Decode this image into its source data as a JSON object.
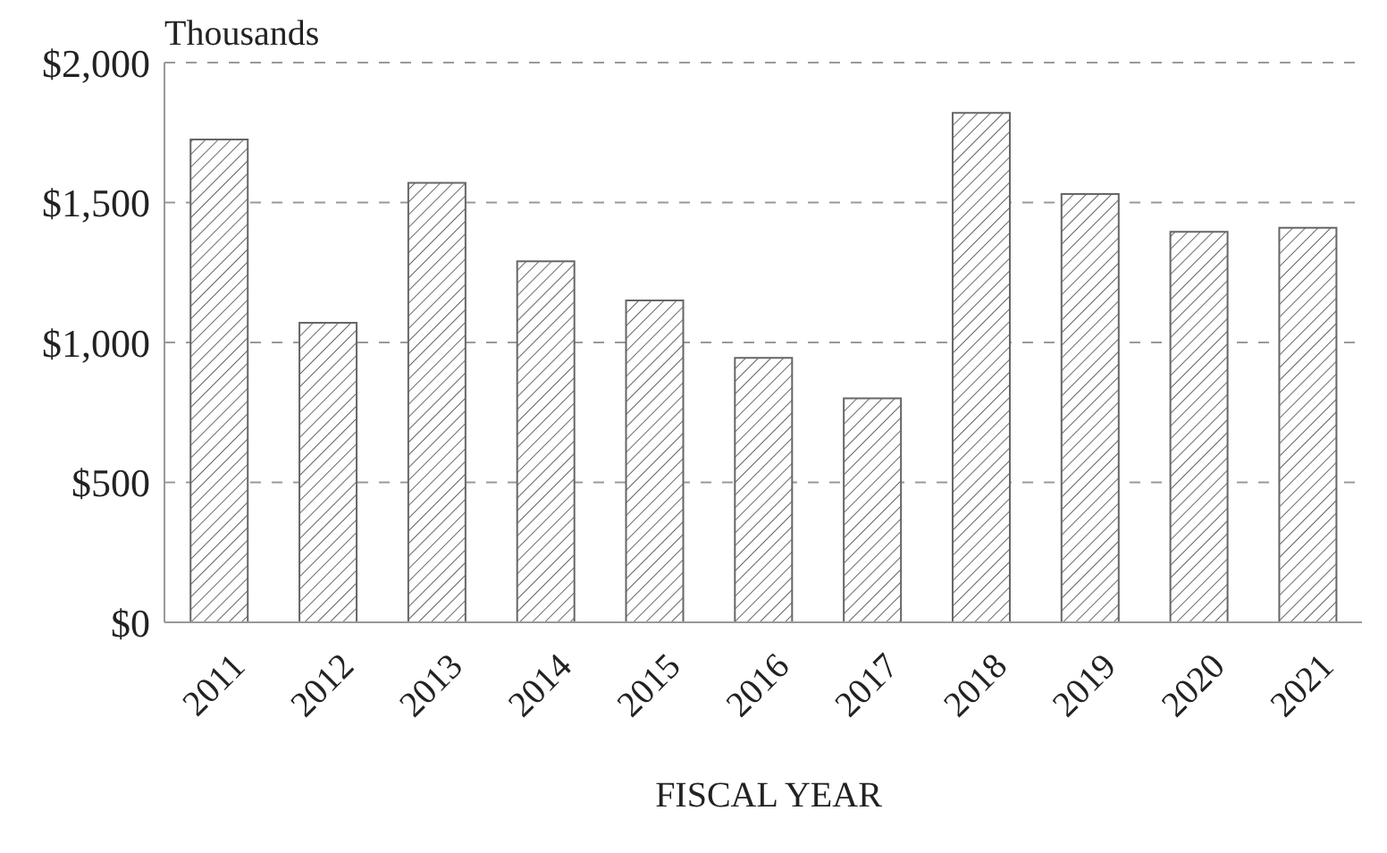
{
  "chart_data": {
    "type": "bar",
    "ylabel": "Thousands",
    "xlabel": "FISCAL YEAR",
    "categories": [
      "2011",
      "2012",
      "2013",
      "2014",
      "2015",
      "2016",
      "2017",
      "2018",
      "2019",
      "2020",
      "2021"
    ],
    "values": [
      1725,
      1070,
      1570,
      1290,
      1150,
      945,
      800,
      1820,
      1530,
      1395,
      1410
    ],
    "color": "#666666",
    "ylim": [
      0,
      2000
    ],
    "yticks": [
      {
        "value": 0,
        "label": "$0"
      },
      {
        "value": 500,
        "label": "$500"
      },
      {
        "value": 1000,
        "label": "$1,000"
      },
      {
        "value": 1500,
        "label": "$1,500"
      },
      {
        "value": 2000,
        "label": "$2,000"
      }
    ],
    "grid": "y"
  }
}
